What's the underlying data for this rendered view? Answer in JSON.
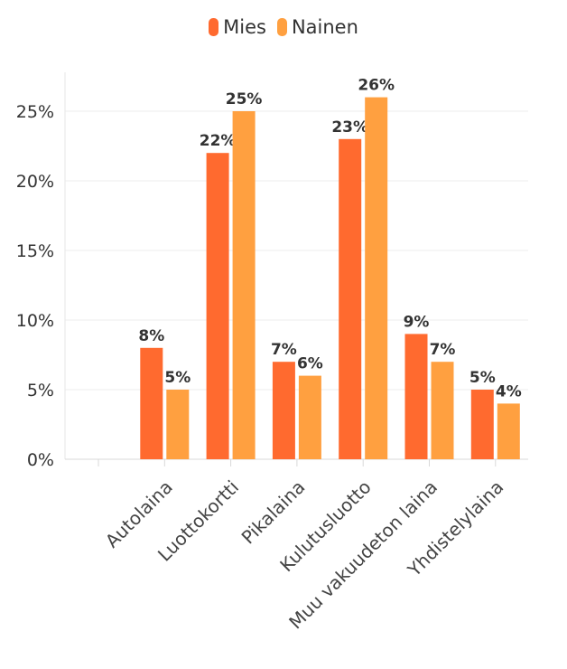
{
  "chart_data": {
    "type": "bar",
    "title": "",
    "xlabel": "",
    "ylabel": "",
    "categories": [
      "",
      "Autolaina",
      "Luottokortti",
      "Pikalaina",
      "Kulutusluotto",
      "Muu vakuudeton laina",
      "Yhdistelylaina"
    ],
    "series": [
      {
        "name": "Mies",
        "color": "#FF6A2F",
        "values": [
          null,
          8,
          22,
          7,
          23,
          9,
          5
        ],
        "labels": [
          "",
          "8%",
          "22%",
          "7%",
          "23%",
          "9%",
          "5%"
        ]
      },
      {
        "name": "Nainen",
        "color": "#FFA040",
        "values": [
          null,
          5,
          25,
          6,
          26,
          7,
          4
        ],
        "labels": [
          "",
          "5%",
          "25%",
          "6%",
          "26%",
          "7%",
          "4%"
        ]
      }
    ],
    "yticks": [
      0,
      5,
      10,
      15,
      20,
      25
    ],
    "ytick_labels": [
      "0%",
      "5%",
      "10%",
      "15%",
      "20%",
      "25%"
    ],
    "ylim": [
      0,
      26
    ],
    "grid": true,
    "legend_position": "top-center"
  }
}
